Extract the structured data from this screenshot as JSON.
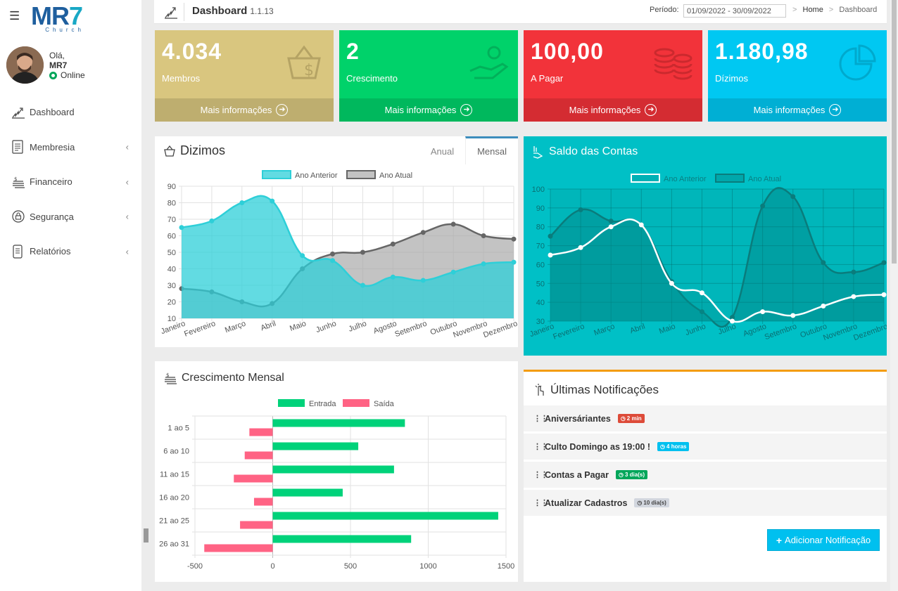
{
  "sidebar": {
    "logo": {
      "text_main_a": "MR",
      "text_main_b": "7",
      "text_sub": "Church"
    },
    "user": {
      "greeting": "Olá,",
      "name": "MR7",
      "status": "Online"
    },
    "items": [
      {
        "label": "Dashboard",
        "icon": "chart-stairs-icon",
        "has_children": false
      },
      {
        "label": "Membresia",
        "icon": "document-icon",
        "has_children": true
      },
      {
        "label": "Financeiro",
        "icon": "money-stack-icon",
        "has_children": true
      },
      {
        "label": "Segurança",
        "icon": "lock-icon",
        "has_children": true
      },
      {
        "label": "Relatórios",
        "icon": "report-icon",
        "has_children": true
      }
    ],
    "chevron": "‹"
  },
  "header": {
    "title": "Dashboard",
    "version": "1.1.13",
    "period_label": "Período:",
    "period_value": "01/09/2022 - 30/09/2022",
    "breadcrumb": [
      "Home",
      "Dashboard"
    ],
    "breadcrumb_sep": ">"
  },
  "stats": [
    {
      "value": "4.034",
      "label": "Membros",
      "footer": "Mais informações",
      "color": "#d9c67f",
      "icon": "basket-money-icon"
    },
    {
      "value": "2",
      "label": "Crescimento",
      "footer": "Mais informações",
      "color": "#00d26a",
      "icon": "hand-coin-icon"
    },
    {
      "value": "100,00",
      "label": "A Pagar",
      "footer": "Mais informações",
      "color": "#f2333a",
      "icon": "coins-stack-icon"
    },
    {
      "value": "1.180,98",
      "label": "Dízimos",
      "footer": "Mais informações",
      "color": "#00c8f2",
      "icon": "pie-chart-icon"
    }
  ],
  "dizimos": {
    "title": "Dizimos",
    "tabs": [
      "Anual",
      "Mensal"
    ],
    "active_tab": "Mensal"
  },
  "saldo": {
    "title": "Saldo das Contas"
  },
  "crescimento": {
    "title": "Crescimento Mensal"
  },
  "notifications": {
    "title": "Últimas Notificações",
    "items": [
      {
        "text": "Aniversáriantes",
        "badge": "2 min",
        "badge_color": "#dd4b39"
      },
      {
        "text": "Culto Domingo as 19:00 !",
        "badge": "4 horas",
        "badge_color": "#00c0ef"
      },
      {
        "text": "Contas a Pagar",
        "badge": "3 dia(s)",
        "badge_color": "#00a65a"
      },
      {
        "text": "Atualizar Cadastros",
        "badge": "10 dia(s)",
        "badge_color": "#d2d6de"
      }
    ],
    "add_button": "Adicionar Notificação"
  },
  "chart_data": [
    {
      "id": "dizimos",
      "type": "area",
      "title": "Dizimos",
      "categories": [
        "Janeiro",
        "Fevereiro",
        "Março",
        "Abril",
        "Maio",
        "Junho",
        "Julho",
        "Agosto",
        "Setembro",
        "Outubro",
        "Novembro",
        "Dezembro"
      ],
      "series": [
        {
          "name": "Ano Anterior",
          "values": [
            65,
            69,
            80,
            81,
            48,
            45,
            30,
            35,
            33,
            38,
            43,
            44
          ],
          "color": "#2ecfd8"
        },
        {
          "name": "Ano Atual",
          "values": [
            28,
            26,
            20,
            19,
            40,
            49,
            50,
            55,
            62,
            67,
            60,
            58
          ],
          "color": "#666666"
        }
      ],
      "ylim": [
        10,
        90
      ],
      "yticks": [
        10,
        20,
        30,
        40,
        50,
        60,
        70,
        80,
        90
      ],
      "legend": "top"
    },
    {
      "id": "saldo",
      "type": "area",
      "title": "Saldo das Contas",
      "categories": [
        "Janeiro",
        "Fevereiro",
        "Março",
        "Abril",
        "Maio",
        "Junho",
        "Julho",
        "Agosto",
        "Setembro",
        "Outubro",
        "Novembro",
        "Dezembro"
      ],
      "series": [
        {
          "name": "Ano Anterior",
          "values": [
            65,
            69,
            80,
            81,
            50,
            45,
            30,
            35,
            33,
            38,
            43,
            44
          ],
          "color": "#ffffff"
        },
        {
          "name": "Ano Atual",
          "values": [
            75,
            89,
            83,
            81,
            51,
            35,
            32,
            91,
            96,
            61,
            56,
            61
          ],
          "color": "#0a8f8f"
        }
      ],
      "ylim": [
        30,
        100
      ],
      "yticks": [
        30,
        40,
        50,
        60,
        70,
        80,
        90,
        100
      ],
      "legend": "top"
    },
    {
      "id": "crescimento",
      "type": "bar",
      "orientation": "horizontal",
      "title": "Crescimento Mensal",
      "categories": [
        "1 ao 5",
        "6 ao 10",
        "11 ao 15",
        "16 ao 20",
        "21 ao 25",
        "26 ao 31"
      ],
      "series": [
        {
          "name": "Entrada",
          "values": [
            850,
            550,
            780,
            450,
            1450,
            890
          ],
          "color": "#00d27a"
        },
        {
          "name": "Saída",
          "values": [
            -150,
            -180,
            -250,
            -120,
            -210,
            -440
          ],
          "color": "#ff6384"
        }
      ],
      "xlim": [
        -500,
        1500
      ],
      "xticks": [
        -500,
        0,
        500,
        1000,
        1500
      ],
      "legend": "top"
    }
  ]
}
